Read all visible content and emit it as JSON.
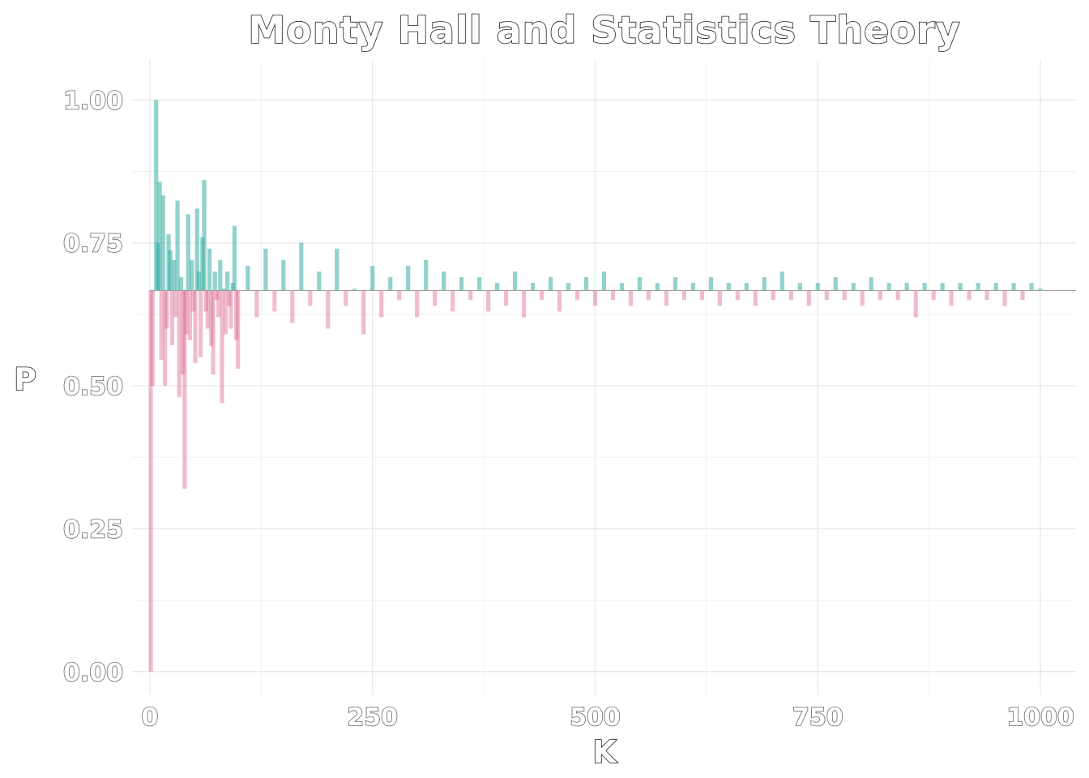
{
  "chart_data": {
    "type": "bar",
    "title": "Monty Hall and Statistics Theory",
    "xlabel": "K",
    "ylabel": "P",
    "xlim": [
      -20,
      1040
    ],
    "ylim": [
      -0.04,
      1.07
    ],
    "x_ticks": [
      0,
      250,
      500,
      750,
      1000
    ],
    "x_tick_labels": [
      "0",
      "250",
      "500",
      "750",
      "1000"
    ],
    "y_ticks": [
      0.0,
      0.25,
      0.5,
      0.75,
      1.0
    ],
    "y_tick_labels": [
      "0.00",
      "0.25",
      "0.50",
      "0.75",
      "1.00"
    ],
    "reference_line": 0.6667,
    "grid": true,
    "colors": {
      "above": "#26a69a",
      "below": "#d95f8b",
      "text": "#1a1a1a",
      "tick_text": "#666666"
    },
    "series": [
      {
        "name": "",
        "x": [
          1,
          3,
          5,
          7,
          9,
          11,
          13,
          15,
          17,
          19,
          21,
          23,
          25,
          27,
          29,
          31,
          33,
          35,
          37,
          39,
          41,
          43,
          45,
          47,
          49,
          51,
          53,
          55,
          57,
          59,
          61,
          63,
          65,
          67,
          69,
          71,
          73,
          75,
          77,
          79,
          81,
          83,
          85,
          87,
          89,
          91,
          93,
          95,
          97,
          99,
          110,
          120,
          130,
          140,
          150,
          160,
          170,
          180,
          190,
          200,
          210,
          220,
          230,
          240,
          250,
          260,
          270,
          280,
          290,
          300,
          310,
          320,
          330,
          340,
          350,
          360,
          370,
          380,
          390,
          400,
          410,
          420,
          430,
          440,
          450,
          460,
          470,
          480,
          490,
          500,
          510,
          520,
          530,
          540,
          550,
          560,
          570,
          580,
          590,
          600,
          610,
          620,
          630,
          640,
          650,
          660,
          670,
          680,
          690,
          700,
          710,
          720,
          730,
          740,
          750,
          760,
          770,
          780,
          790,
          800,
          810,
          820,
          830,
          840,
          850,
          860,
          870,
          880,
          890,
          900,
          910,
          920,
          930,
          940,
          950,
          960,
          970,
          980,
          990,
          1000
        ],
        "values": [
          0.0,
          0.5,
          0.667,
          1.0,
          0.75,
          0.857,
          0.545,
          0.833,
          0.5,
          0.6,
          0.765,
          0.737,
          0.571,
          0.72,
          0.62,
          0.824,
          0.48,
          0.69,
          0.52,
          0.32,
          0.59,
          0.8,
          0.58,
          0.72,
          0.63,
          0.54,
          0.81,
          0.7,
          0.55,
          0.76,
          0.86,
          0.63,
          0.6,
          0.74,
          0.57,
          0.52,
          0.7,
          0.65,
          0.62,
          0.72,
          0.47,
          0.67,
          0.59,
          0.7,
          0.64,
          0.6,
          0.68,
          0.78,
          0.58,
          0.53,
          0.71,
          0.62,
          0.74,
          0.63,
          0.72,
          0.61,
          0.75,
          0.64,
          0.7,
          0.6,
          0.74,
          0.64,
          0.67,
          0.59,
          0.71,
          0.62,
          0.69,
          0.65,
          0.71,
          0.62,
          0.72,
          0.64,
          0.7,
          0.63,
          0.69,
          0.65,
          0.69,
          0.63,
          0.68,
          0.64,
          0.7,
          0.62,
          0.68,
          0.65,
          0.69,
          0.63,
          0.68,
          0.65,
          0.69,
          0.64,
          0.7,
          0.65,
          0.68,
          0.64,
          0.69,
          0.65,
          0.68,
          0.64,
          0.69,
          0.65,
          0.68,
          0.65,
          0.69,
          0.64,
          0.68,
          0.65,
          0.68,
          0.64,
          0.69,
          0.65,
          0.7,
          0.65,
          0.68,
          0.64,
          0.68,
          0.65,
          0.69,
          0.65,
          0.68,
          0.64,
          0.69,
          0.65,
          0.68,
          0.65,
          0.68,
          0.62,
          0.68,
          0.65,
          0.68,
          0.64,
          0.68,
          0.65,
          0.68,
          0.65,
          0.68,
          0.64,
          0.68,
          0.65,
          0.68,
          0.67
        ]
      }
    ]
  }
}
